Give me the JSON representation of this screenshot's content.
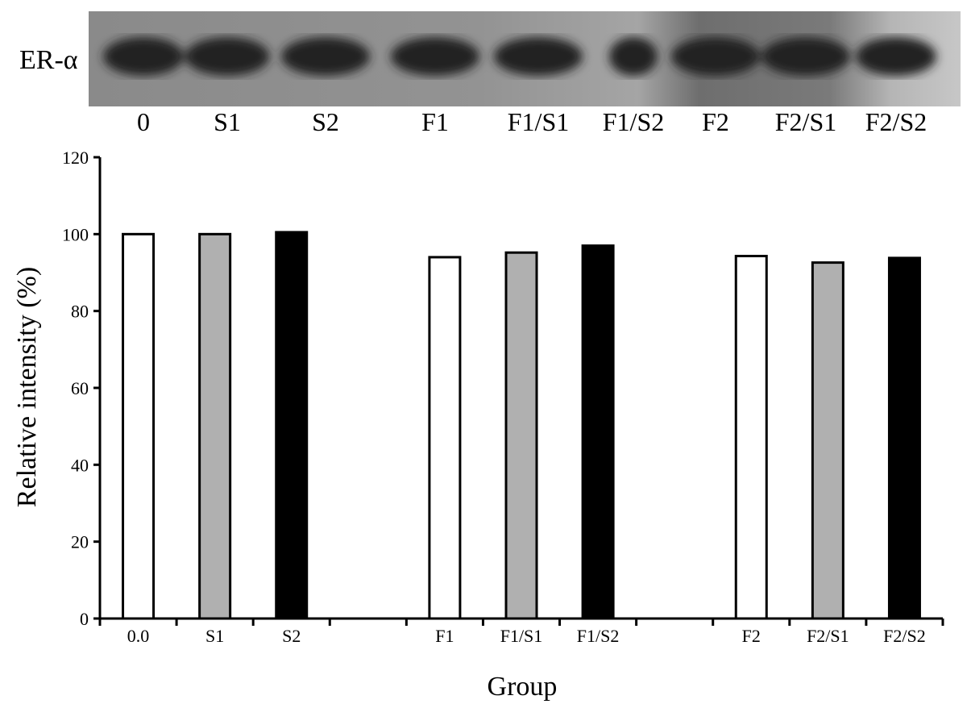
{
  "blot": {
    "label": "ER-α",
    "lanes": [
      "0",
      "S1",
      "S2",
      "F1",
      "F1/S1",
      "F1/S2",
      "F2",
      "F2/S1",
      "F2/S2"
    ]
  },
  "chart_data": {
    "type": "bar",
    "xlabel": "Group",
    "ylabel": "Relative  intensity (%)",
    "ylim": [
      0,
      120
    ],
    "yticks": [
      0,
      20,
      40,
      60,
      80,
      100,
      120
    ],
    "grid": false,
    "categories": [
      "0.0",
      "S1",
      "S2",
      "F1",
      "F1/S1",
      "F1/S2",
      "F2",
      "F2/S1",
      "F2/S2"
    ],
    "groups": [
      {
        "members": [
          "0.0",
          "S1",
          "S2"
        ]
      },
      {
        "members": [
          "F1",
          "F1/S1",
          "F1/S2"
        ]
      },
      {
        "members": [
          "F2",
          "F2/S1",
          "F2/S2"
        ]
      }
    ],
    "values": [
      100,
      100,
      100.5,
      94,
      95.2,
      97,
      94.3,
      92.6,
      93.8
    ],
    "bar_colors": [
      "#ffffff",
      "#b0b0b0",
      "#000000",
      "#ffffff",
      "#b0b0b0",
      "#000000",
      "#ffffff",
      "#b0b0b0",
      "#000000"
    ]
  }
}
